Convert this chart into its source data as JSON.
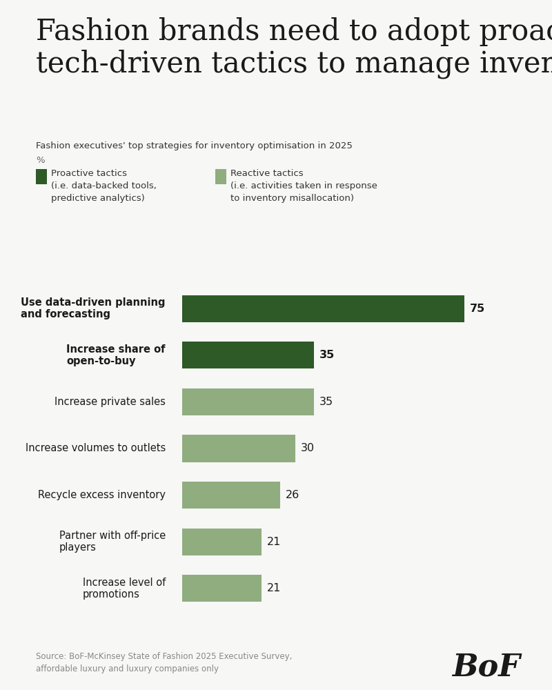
{
  "title": "Fashion brands need to adopt proactive\ntech-driven tactics to manage inventory",
  "subtitle": "Fashion executives' top strategies for inventory optimisation in 2025",
  "subtitle2": "%",
  "legend_proactive_label": "Proactive tactics\n(i.e. data-backed tools,\npredictive analytics)",
  "legend_reactive_label": "Reactive tactics\n(i.e. activities taken in response\nto inventory misallocation)",
  "categories": [
    "Use data-driven planning\nand forecasting",
    "Increase share of\nopen-to-buy",
    "Increase private sales",
    "Increase volumes to outlets",
    "Recycle excess inventory",
    "Partner with off-price\nplayers",
    "Increase level of\npromotions"
  ],
  "values": [
    75,
    35,
    35,
    30,
    26,
    21,
    21
  ],
  "bold_flags": [
    true,
    true,
    false,
    false,
    false,
    false,
    false
  ],
  "colors": [
    "#2d5a27",
    "#2d5a27",
    "#8fad7f",
    "#8fad7f",
    "#8fad7f",
    "#8fad7f",
    "#8fad7f"
  ],
  "proactive_color": "#2d5a27",
  "reactive_color": "#8fad7f",
  "background_color": "#f7f7f5",
  "text_color": "#1a1a1a",
  "source_text": "Source: BoF-McKinsey State of Fashion 2025 Executive Survey,\naffordable luxury and luxury companies only",
  "xlim": [
    0,
    88
  ]
}
